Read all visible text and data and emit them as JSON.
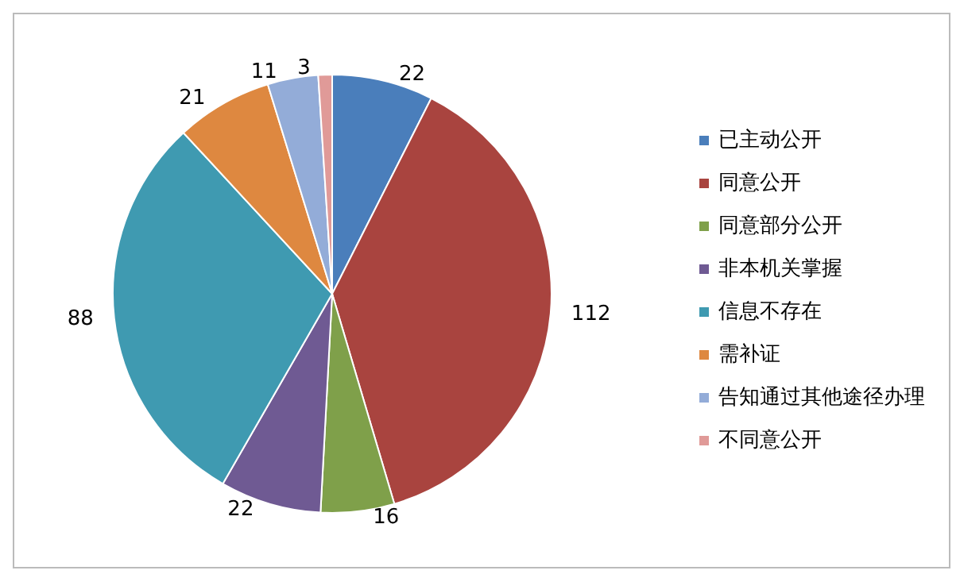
{
  "chart_data": {
    "type": "pie",
    "categories": [
      "已主动公开",
      "同意公开",
      "同意部分公开",
      "非本机关掌握",
      "信息不存在",
      "需补证",
      "告知通过其他途径办理",
      "不同意公开"
    ],
    "values": [
      22,
      112,
      16,
      22,
      88,
      21,
      11,
      3
    ],
    "colors": [
      "#4a7ebb",
      "#a9443f",
      "#7fa04a",
      "#6f5a93",
      "#3f9ab1",
      "#de8840",
      "#93acd8",
      "#e09a98"
    ],
    "data_labels": true,
    "legend": "right"
  }
}
